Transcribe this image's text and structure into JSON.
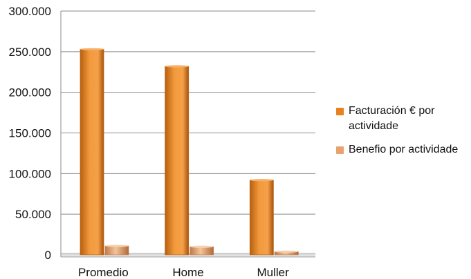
{
  "chart_data": {
    "type": "bar",
    "categories": [
      "Promedio",
      "Home",
      "Muller"
    ],
    "series": [
      {
        "name": "Facturación € por actividade",
        "values": [
          253000,
          232000,
          92000
        ],
        "color": "#e8821f"
      },
      {
        "name": "Benefio por actividade",
        "values": [
          11000,
          10000,
          4000
        ],
        "color": "#e9a26f"
      }
    ],
    "ylim": [
      0,
      300000
    ],
    "yticks": [
      0,
      50000,
      100000,
      150000,
      200000,
      250000,
      300000
    ],
    "ytick_labels": [
      "0",
      "50.000",
      "100.000",
      "150.000",
      "200.000",
      "250.000",
      "300.000"
    ],
    "grid": true,
    "legend_position": "right"
  }
}
